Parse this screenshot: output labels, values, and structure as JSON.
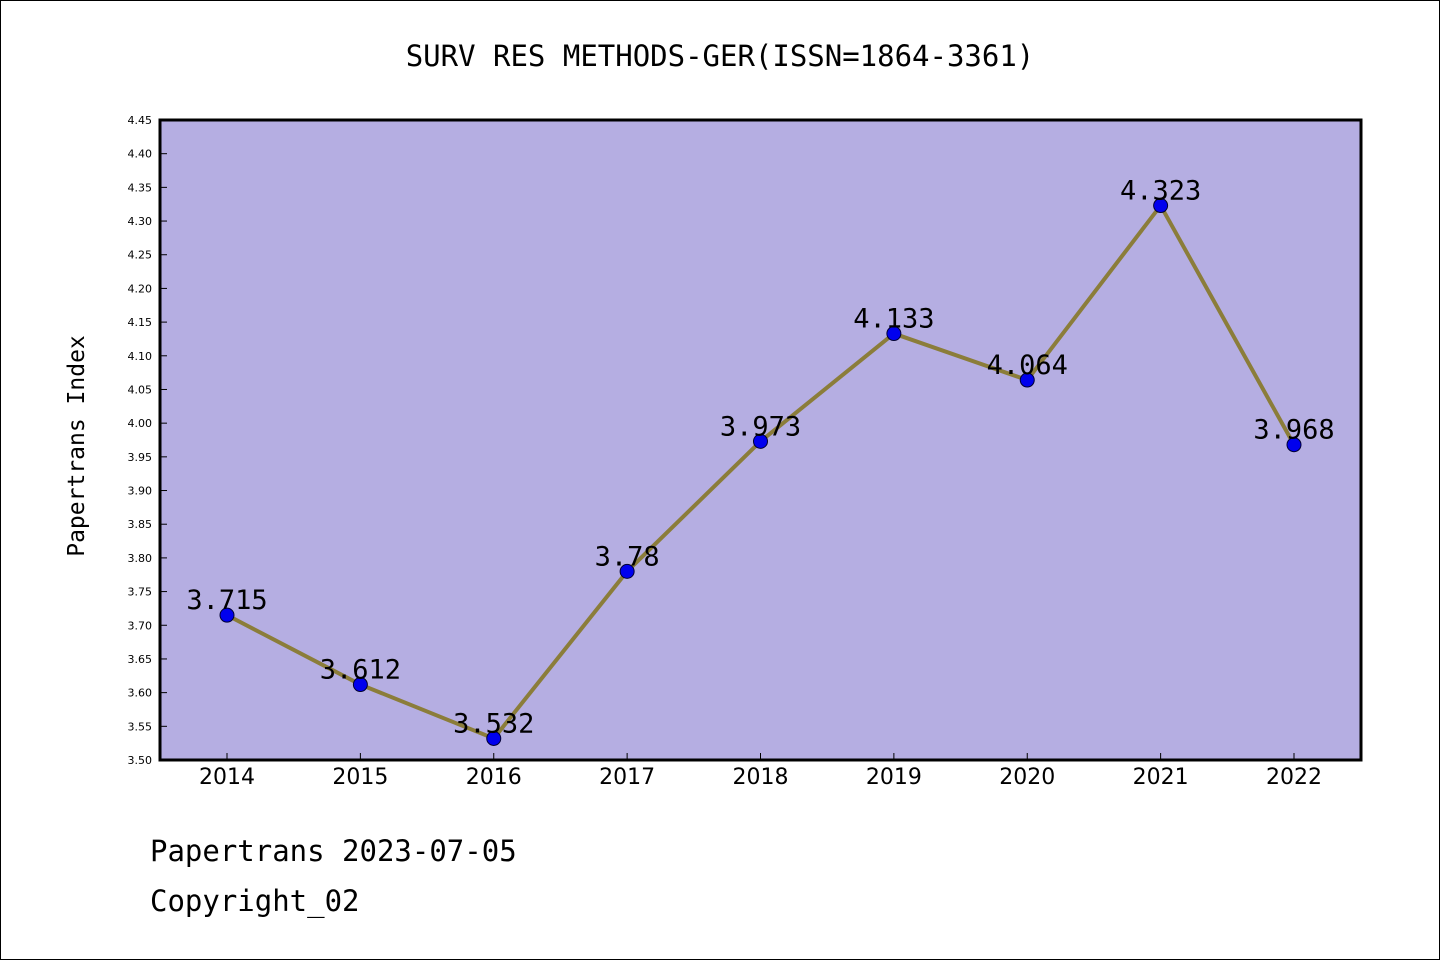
{
  "chart_data": {
    "type": "line",
    "title": "SURV RES METHODS-GER(ISSN=1864-3361)",
    "xlabel": "",
    "ylabel": "Papertrans Index",
    "categories": [
      "2014",
      "2015",
      "2016",
      "2017",
      "2018",
      "2019",
      "2020",
      "2021",
      "2022"
    ],
    "series": [
      {
        "values": [
          3.715,
          3.612,
          3.532,
          3.78,
          3.973,
          4.133,
          4.064,
          4.323,
          3.968
        ],
        "data_labels": [
          "3.715",
          "3.612",
          "3.532",
          "3.78",
          "3.973",
          "4.133",
          "4.064",
          "4.323",
          "3.968"
        ]
      }
    ],
    "ylim": [
      3.5,
      4.45
    ],
    "yticks": [
      "3.50",
      "3.55",
      "3.60",
      "3.65",
      "3.70",
      "3.75",
      "3.80",
      "3.85",
      "3.90",
      "3.95",
      "4.00",
      "4.05",
      "4.10",
      "4.15",
      "4.20",
      "4.25",
      "4.30",
      "4.35",
      "4.40",
      "4.45"
    ],
    "grid": false,
    "colors": {
      "plot_background": "#b5aee2",
      "line": "#8b7d3a",
      "marker": "#0000ee"
    }
  },
  "footer": {
    "source_date": "Papertrans 2023-07-05",
    "copyright": "Copyright_02"
  }
}
